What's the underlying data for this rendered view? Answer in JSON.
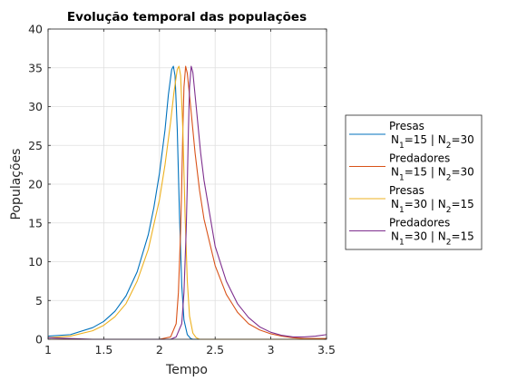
{
  "chart_data": {
    "type": "line",
    "title": "Evolução temporal das populações",
    "xlabel": "Tempo",
    "ylabel": "Populações",
    "xlim": [
      1,
      3.5
    ],
    "ylim": [
      0,
      40
    ],
    "xticks": [
      "1",
      "1.5",
      "2",
      "2.5",
      "3",
      "3.5"
    ],
    "yticks": [
      "0",
      "5",
      "10",
      "15",
      "20",
      "25",
      "30",
      "35",
      "40"
    ],
    "grid": true,
    "legend_position": "outside-right",
    "series": [
      {
        "name": "Presas\nN1=15 | N2=30",
        "label_line1": "Presas",
        "label_line2": "N_1=15 | N_2=30",
        "color": "#0072BD",
        "x": [
          1.0,
          1.2,
          1.4,
          1.5,
          1.6,
          1.7,
          1.8,
          1.9,
          1.95,
          2.0,
          2.05,
          2.08,
          2.11,
          2.125,
          2.14,
          2.16,
          2.18,
          2.2,
          2.22,
          2.25,
          2.28,
          2.3,
          2.35,
          2.4,
          3.5
        ],
        "y": [
          0.4,
          0.6,
          1.5,
          2.3,
          3.6,
          5.6,
          8.7,
          13.5,
          17.0,
          21.4,
          27.0,
          31.5,
          34.8,
          35.2,
          34.0,
          27.0,
          16.0,
          7.0,
          2.5,
          0.6,
          0.1,
          0.0,
          0.0,
          0.0,
          0.0
        ]
      },
      {
        "name": "Predadores\nN1=15 | N2=30",
        "label_line1": "Predadores",
        "label_line2": "N_1=15 | N_2=30",
        "color": "#D95319",
        "x": [
          1.0,
          1.5,
          2.0,
          2.1,
          2.15,
          2.17,
          2.19,
          2.2,
          2.21,
          2.22,
          2.235,
          2.25,
          2.28,
          2.32,
          2.36,
          2.4,
          2.5,
          2.6,
          2.7,
          2.8,
          2.9,
          3.0,
          3.1,
          3.2,
          3.3,
          3.4,
          3.5
        ],
        "y": [
          0.0,
          0.0,
          0.0,
          0.3,
          2.0,
          6.0,
          14.0,
          20.0,
          27.0,
          32.5,
          35.2,
          34.3,
          30.0,
          24.0,
          19.2,
          15.5,
          9.5,
          5.8,
          3.5,
          2.0,
          1.2,
          0.7,
          0.4,
          0.2,
          0.1,
          0.1,
          0.1
        ]
      },
      {
        "name": "Presas\nN1=30 | N2=15",
        "label_line1": "Presas",
        "label_line2": "N_1=30 | N_2=15",
        "color": "#EDB120",
        "x": [
          1.0,
          1.2,
          1.4,
          1.5,
          1.6,
          1.7,
          1.8,
          1.9,
          2.0,
          2.05,
          2.1,
          2.13,
          2.16,
          2.175,
          2.19,
          2.21,
          2.23,
          2.25,
          2.27,
          2.3,
          2.33,
          2.36,
          2.4,
          3.5
        ],
        "y": [
          0.2,
          0.4,
          1.1,
          1.8,
          2.9,
          4.6,
          7.5,
          11.6,
          18.0,
          22.5,
          28.0,
          31.8,
          34.8,
          35.2,
          34.0,
          27.0,
          16.0,
          7.5,
          3.0,
          0.8,
          0.2,
          0.0,
          0.0,
          0.0
        ]
      },
      {
        "name": "Predadores\nN1=30 | N2=15",
        "label_line1": "Predadores",
        "label_line2": "N_1=30 | N_2=15",
        "color": "#7E2F8E",
        "x": [
          1.0,
          1.2,
          1.4,
          1.6,
          1.8,
          2.0,
          2.1,
          2.15,
          2.2,
          2.22,
          2.24,
          2.25,
          2.26,
          2.27,
          2.285,
          2.3,
          2.33,
          2.37,
          2.4,
          2.5,
          2.6,
          2.7,
          2.8,
          2.9,
          3.0,
          3.1,
          3.2,
          3.3,
          3.4,
          3.5
        ],
        "y": [
          0.2,
          0.1,
          0.0,
          0.0,
          0.0,
          0.0,
          0.0,
          0.3,
          2.0,
          6.0,
          14.0,
          20.0,
          27.0,
          32.5,
          35.2,
          34.4,
          30.0,
          24.0,
          20.5,
          12.0,
          7.5,
          4.6,
          2.8,
          1.6,
          0.9,
          0.5,
          0.3,
          0.3,
          0.4,
          0.6
        ]
      }
    ]
  }
}
